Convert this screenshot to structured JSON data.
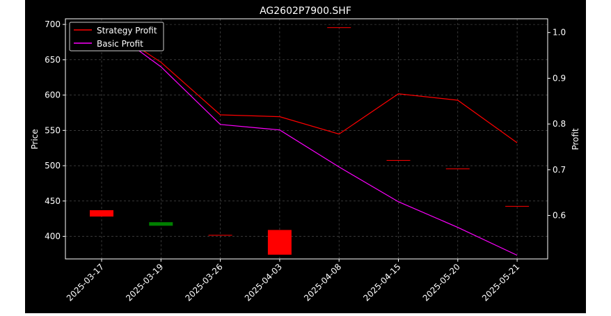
{
  "chart_data": {
    "type": "candlestick+line",
    "title": "AG2602P7900.SHF",
    "ylabel_left": "Price",
    "ylabel_right": "Profit",
    "categories": [
      "2025-03-17",
      "2025-03-19",
      "2025-03-26",
      "2025-04-03",
      "2025-04-08",
      "2025-04-15",
      "2025-05-20",
      "2025-05-21"
    ],
    "ylim_left": [
      368,
      708
    ],
    "yticks_left": [
      400,
      450,
      500,
      550,
      600,
      650,
      700
    ],
    "ylim_right": [
      0.505,
      1.03
    ],
    "yticks_right": [
      0.6,
      0.7,
      0.8,
      0.9,
      1.0
    ],
    "grid": true,
    "legend": "top-left",
    "candles": [
      {
        "date": "2025-03-17",
        "open": 428,
        "close": 437,
        "high": 437,
        "low": 428,
        "color": "#ff0000"
      },
      {
        "date": "2025-03-19",
        "open": 420,
        "close": 415,
        "high": 420,
        "low": 415,
        "color": "#008000"
      },
      {
        "date": "2025-03-26",
        "open": 401,
        "close": 402,
        "high": 402,
        "low": 401,
        "color": "#ff0000"
      },
      {
        "date": "2025-04-03",
        "open": 374,
        "close": 409,
        "high": 409,
        "low": 374,
        "color": "#ff0000"
      },
      {
        "date": "2025-04-08",
        "open": 695,
        "close": 696,
        "high": 696,
        "low": 695,
        "color": "#ff0000"
      },
      {
        "date": "2025-04-15",
        "open": 507,
        "close": 508,
        "high": 508,
        "low": 507,
        "color": "#ff0000"
      },
      {
        "date": "2025-05-20",
        "open": 495,
        "close": 496,
        "high": 496,
        "low": 495,
        "color": "#ff0000"
      },
      {
        "date": "2025-05-21",
        "open": 442,
        "close": 443,
        "high": 443,
        "low": 442,
        "color": "#ff0000"
      }
    ],
    "series": [
      {
        "name": "Strategy Profit",
        "color": "#ff0000",
        "values": [
          1.02,
          0.935,
          0.82,
          0.816,
          0.778,
          0.866,
          0.852,
          0.759
        ]
      },
      {
        "name": "Basic Profit",
        "color": "#ff00ff",
        "values": [
          1.02,
          0.925,
          0.799,
          0.787,
          0.706,
          0.63,
          0.574,
          0.513
        ]
      }
    ]
  }
}
